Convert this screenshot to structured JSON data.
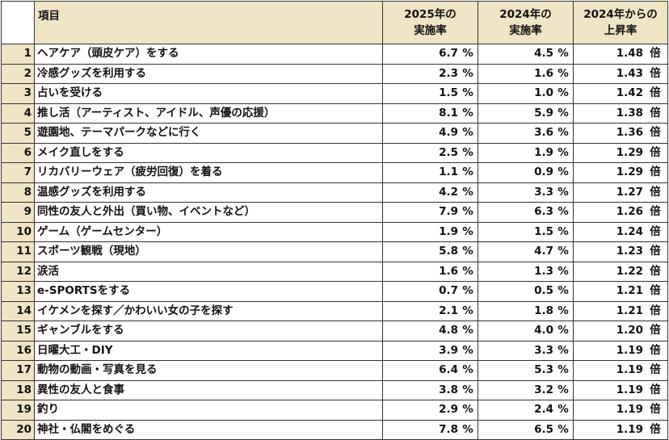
{
  "header": {
    "item": "項目",
    "col2025_line1": "2025年の",
    "col2025_line2": "実施率",
    "col2024_line1": "2024年の",
    "col2024_line2": "実施率",
    "ratio_line1": "2024年からの",
    "ratio_line2": "上昇率"
  },
  "rows": [
    {
      "no": "1",
      "item": "ヘアケア（頭皮ケア）をする",
      "v2025": "6.7",
      "v2024": "4.5",
      "ratio": "1.48"
    },
    {
      "no": "2",
      "item": "冷感グッズを利用する",
      "v2025": "2.3",
      "v2024": "1.6",
      "ratio": "1.43"
    },
    {
      "no": "3",
      "item": "占いを受ける",
      "v2025": "1.5",
      "v2024": "1.0",
      "ratio": "1.42"
    },
    {
      "no": "4",
      "item": "推し活（アーティスト、アイドル、声優の応援）",
      "v2025": "8.1",
      "v2024": "5.9",
      "ratio": "1.38"
    },
    {
      "no": "5",
      "item": "遊園地、テーマパークなどに行く",
      "v2025": "4.9",
      "v2024": "3.6",
      "ratio": "1.36"
    },
    {
      "no": "6",
      "item": "メイク直しをする",
      "v2025": "2.5",
      "v2024": "1.9",
      "ratio": "1.29"
    },
    {
      "no": "7",
      "item": "リカバリーウェア（疲労回復）を着る",
      "v2025": "1.1",
      "v2024": "0.9",
      "ratio": "1.29"
    },
    {
      "no": "8",
      "item": "温感グッズを利用する",
      "v2025": "4.2",
      "v2024": "3.3",
      "ratio": "1.27"
    },
    {
      "no": "9",
      "item": "同性の友人と外出（買い物、イベントなど）",
      "v2025": "7.9",
      "v2024": "6.3",
      "ratio": "1.26"
    },
    {
      "no": "10",
      "item": "ゲーム（ゲームセンター）",
      "v2025": "1.9",
      "v2024": "1.5",
      "ratio": "1.24"
    },
    {
      "no": "11",
      "item": "スポーツ観戦（現地）",
      "v2025": "5.8",
      "v2024": "4.7",
      "ratio": "1.23"
    },
    {
      "no": "12",
      "item": "涙活",
      "v2025": "1.6",
      "v2024": "1.3",
      "ratio": "1.22"
    },
    {
      "no": "13",
      "item": "e-SPORTSをする",
      "v2025": "0.7",
      "v2024": "0.5",
      "ratio": "1.21"
    },
    {
      "no": "14",
      "item": "イケメンを探す／かわいい女の子を探す",
      "v2025": "2.1",
      "v2024": "1.8",
      "ratio": "1.21"
    },
    {
      "no": "15",
      "item": "ギャンブルをする",
      "v2025": "4.8",
      "v2024": "4.0",
      "ratio": "1.20"
    },
    {
      "no": "16",
      "item": "日曜大工・DIY",
      "v2025": "3.9",
      "v2024": "3.3",
      "ratio": "1.19"
    },
    {
      "no": "17",
      "item": "動物の動画・写真を見る",
      "v2025": "6.4",
      "v2024": "5.3",
      "ratio": "1.19"
    },
    {
      "no": "18",
      "item": "異性の友人と食事",
      "v2025": "3.8",
      "v2024": "3.2",
      "ratio": "1.19"
    },
    {
      "no": "19",
      "item": "釣り",
      "v2025": "2.9",
      "v2024": "2.4",
      "ratio": "1.19"
    },
    {
      "no": "20",
      "item": "神社・仏閣をめぐる",
      "v2025": "7.8",
      "v2024": "6.5",
      "ratio": "1.19"
    }
  ],
  "units": {
    "percent": "%",
    "times": "倍"
  }
}
